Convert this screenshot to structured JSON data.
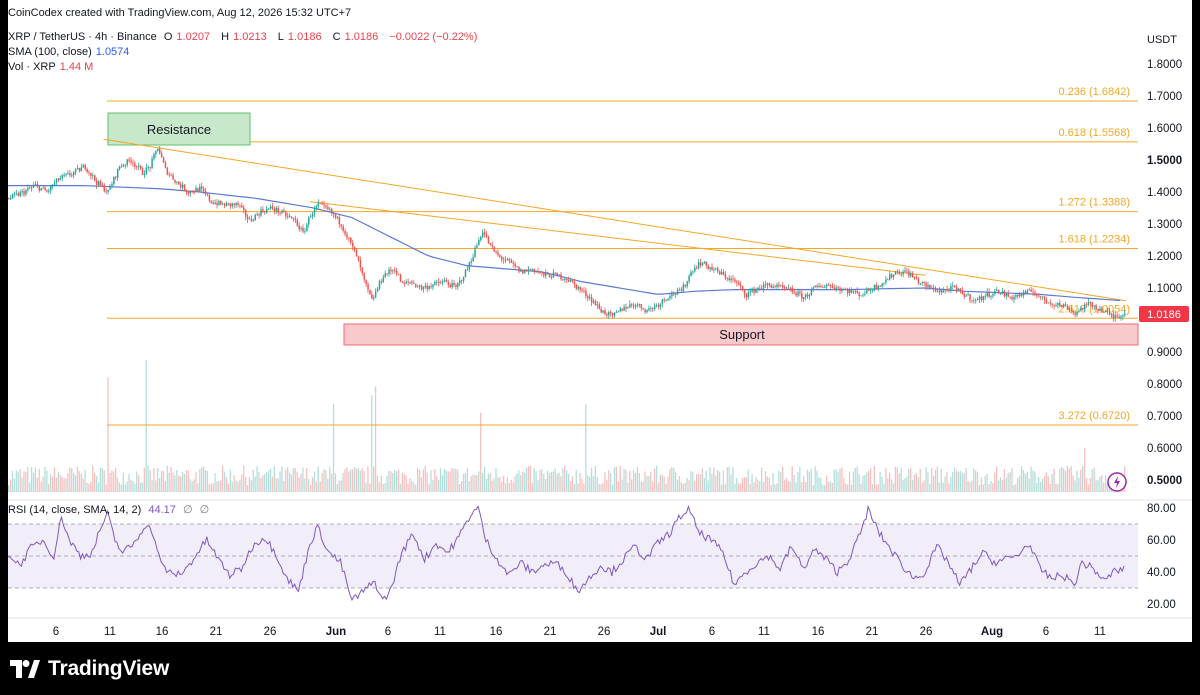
{
  "credit": "CoinCodex created with TradingView.com, Aug 12, 2026 15:32 UTC+7",
  "legend": {
    "symbol": "XRP / TetherUS · 4h · Binance",
    "open_label": "O",
    "open": "1.0207",
    "high_label": "H",
    "high": "1.0213",
    "low_label": "L",
    "low": "1.0186",
    "close_label": "C",
    "close": "1.0186",
    "change": "−0.0022 (−0.22%)",
    "sma_label": "SMA (100, close)",
    "sma_value": "1.0574",
    "vol_label": "Vol · XRP",
    "vol_value": "1.44 M"
  },
  "currency": "USDT",
  "rsi_legend": {
    "label": "RSI (14, close, SMA, 14, 2)",
    "value": "44.17",
    "na1": "∅",
    "na2": "∅"
  },
  "brand": "TradingView",
  "colors": {
    "up": "#26a69a",
    "down": "#ef5350",
    "sma": "#5b7bd5",
    "fib": "#f5a623",
    "rsi": "#7e57c2",
    "support": "#f26b73",
    "resistance": "#5cbf6b"
  },
  "chart_data": {
    "type": "candlestick",
    "x_tick_labels": [
      "6",
      "11",
      "16",
      "21",
      "26",
      "Jun",
      "6",
      "11",
      "16",
      "21",
      "26",
      "Jul",
      "6",
      "11",
      "16",
      "21",
      "26",
      "Aug",
      "6",
      "11"
    ],
    "y_tick_labels": [
      "1.8000",
      "1.7000",
      "1.6000",
      "1.5000",
      "1.4000",
      "1.3000",
      "1.2000",
      "1.1000",
      "0.9000",
      "0.8000",
      "0.7000",
      "0.6000",
      "0.5000"
    ],
    "last_price": "1.0186",
    "fib_levels": [
      {
        "label": "0.236 (1.6842)",
        "value": 1.6842
      },
      {
        "label": "0.618 (1.5568)",
        "value": 1.5568
      },
      {
        "label": "1.272 (1.3388)",
        "value": 1.3388
      },
      {
        "label": "1.618 (1.2234)",
        "value": 1.2234
      },
      {
        "label": "2.618 (1.0054)",
        "value": 1.0054
      },
      {
        "label": "3.272 (0.6720)",
        "value": 0.672
      }
    ],
    "zones": [
      {
        "label": "Resistance",
        "top": 1.6,
        "bottom": 1.555
      },
      {
        "label": "Support",
        "top": 0.999,
        "bottom": 0.98
      }
    ],
    "price_anchors": [
      [
        0,
        1.38
      ],
      [
        8,
        1.4
      ],
      [
        14,
        1.42
      ],
      [
        20,
        1.4
      ],
      [
        26,
        1.44
      ],
      [
        34,
        1.46
      ],
      [
        40,
        1.48
      ],
      [
        46,
        1.43
      ],
      [
        52,
        1.4
      ],
      [
        58,
        1.48
      ],
      [
        64,
        1.5
      ],
      [
        70,
        1.46
      ],
      [
        74,
        1.48
      ],
      [
        78,
        1.54
      ],
      [
        82,
        1.47
      ],
      [
        88,
        1.43
      ],
      [
        94,
        1.4
      ],
      [
        100,
        1.41
      ],
      [
        106,
        1.37
      ],
      [
        112,
        1.36
      ],
      [
        120,
        1.36
      ],
      [
        126,
        1.31
      ],
      [
        132,
        1.34
      ],
      [
        138,
        1.35
      ],
      [
        144,
        1.33
      ],
      [
        150,
        1.31
      ],
      [
        154,
        1.27
      ],
      [
        158,
        1.33
      ],
      [
        162,
        1.36
      ],
      [
        168,
        1.34
      ],
      [
        174,
        1.3
      ],
      [
        178,
        1.25
      ],
      [
        182,
        1.2
      ],
      [
        186,
        1.12
      ],
      [
        190,
        1.06
      ],
      [
        196,
        1.14
      ],
      [
        202,
        1.16
      ],
      [
        206,
        1.11
      ],
      [
        210,
        1.12
      ],
      [
        216,
        1.1
      ],
      [
        222,
        1.11
      ],
      [
        228,
        1.12
      ],
      [
        234,
        1.1
      ],
      [
        240,
        1.16
      ],
      [
        244,
        1.22
      ],
      [
        248,
        1.28
      ],
      [
        252,
        1.23
      ],
      [
        256,
        1.2
      ],
      [
        262,
        1.18
      ],
      [
        268,
        1.15
      ],
      [
        274,
        1.16
      ],
      [
        280,
        1.14
      ],
      [
        286,
        1.14
      ],
      [
        292,
        1.13
      ],
      [
        298,
        1.1
      ],
      [
        304,
        1.07
      ],
      [
        310,
        1.03
      ],
      [
        316,
        1.01
      ],
      [
        322,
        1.04
      ],
      [
        328,
        1.05
      ],
      [
        334,
        1.03
      ],
      [
        340,
        1.05
      ],
      [
        346,
        1.08
      ],
      [
        352,
        1.09
      ],
      [
        358,
        1.16
      ],
      [
        362,
        1.18
      ],
      [
        368,
        1.16
      ],
      [
        374,
        1.14
      ],
      [
        380,
        1.12
      ],
      [
        386,
        1.08
      ],
      [
        392,
        1.1
      ],
      [
        398,
        1.11
      ],
      [
        404,
        1.1
      ],
      [
        410,
        1.09
      ],
      [
        416,
        1.07
      ],
      [
        422,
        1.1
      ],
      [
        428,
        1.11
      ],
      [
        434,
        1.1
      ],
      [
        440,
        1.09
      ],
      [
        446,
        1.08
      ],
      [
        452,
        1.1
      ],
      [
        458,
        1.12
      ],
      [
        464,
        1.15
      ],
      [
        470,
        1.15
      ],
      [
        476,
        1.12
      ],
      [
        482,
        1.1
      ],
      [
        488,
        1.09
      ],
      [
        494,
        1.1
      ],
      [
        500,
        1.08
      ],
      [
        506,
        1.06
      ],
      [
        512,
        1.08
      ],
      [
        518,
        1.09
      ],
      [
        524,
        1.07
      ],
      [
        530,
        1.08
      ],
      [
        536,
        1.09
      ],
      [
        542,
        1.06
      ],
      [
        548,
        1.05
      ],
      [
        554,
        1.04
      ],
      [
        558,
        1.02
      ],
      [
        562,
        1.04
      ],
      [
        566,
        1.05
      ],
      [
        572,
        1.03
      ],
      [
        578,
        1.01
      ],
      [
        584,
        1.02
      ]
    ],
    "sma_anchors": [
      [
        0,
        1.42
      ],
      [
        40,
        1.42
      ],
      [
        80,
        1.41
      ],
      [
        100,
        1.4
      ],
      [
        130,
        1.38
      ],
      [
        160,
        1.35
      ],
      [
        180,
        1.32
      ],
      [
        200,
        1.26
      ],
      [
        220,
        1.2
      ],
      [
        240,
        1.17
      ],
      [
        260,
        1.16
      ],
      [
        280,
        1.15
      ],
      [
        300,
        1.12
      ],
      [
        320,
        1.1
      ],
      [
        340,
        1.08
      ],
      [
        360,
        1.09
      ],
      [
        380,
        1.095
      ],
      [
        400,
        1.095
      ],
      [
        420,
        1.095
      ],
      [
        440,
        1.095
      ],
      [
        460,
        1.098
      ],
      [
        480,
        1.1
      ],
      [
        500,
        1.09
      ],
      [
        520,
        1.085
      ],
      [
        540,
        1.08
      ],
      [
        560,
        1.07
      ],
      [
        584,
        1.06
      ]
    ],
    "trendlines": [
      {
        "from": [
          50,
          1.565
        ],
        "to": [
          585,
          1.06
        ]
      },
      {
        "from": [
          158,
          1.37
        ],
        "to": [
          480,
          1.14
        ]
      }
    ],
    "volume_spikes": [
      [
        52,
        1.3
      ],
      [
        72,
        1.5
      ],
      [
        170,
        1.0
      ],
      [
        190,
        1.1
      ],
      [
        192,
        1.2
      ],
      [
        247,
        0.9
      ],
      [
        302,
        1.0
      ],
      [
        563,
        0.5
      ]
    ],
    "rsi": {
      "levels": [
        70,
        50,
        30
      ],
      "ticks": [
        "80.00",
        "60.00",
        "40.00",
        "20.00"
      ],
      "anchors": [
        [
          0,
          52
        ],
        [
          6,
          44
        ],
        [
          12,
          55
        ],
        [
          18,
          60
        ],
        [
          24,
          50
        ],
        [
          28,
          75
        ],
        [
          32,
          60
        ],
        [
          38,
          50
        ],
        [
          44,
          52
        ],
        [
          48,
          66
        ],
        [
          52,
          76
        ],
        [
          56,
          60
        ],
        [
          60,
          52
        ],
        [
          66,
          58
        ],
        [
          72,
          70
        ],
        [
          76,
          64
        ],
        [
          80,
          45
        ],
        [
          86,
          38
        ],
        [
          92,
          40
        ],
        [
          98,
          50
        ],
        [
          104,
          60
        ],
        [
          110,
          48
        ],
        [
          116,
          38
        ],
        [
          122,
          42
        ],
        [
          128,
          56
        ],
        [
          134,
          62
        ],
        [
          140,
          52
        ],
        [
          146,
          36
        ],
        [
          152,
          28
        ],
        [
          158,
          58
        ],
        [
          162,
          68
        ],
        [
          168,
          52
        ],
        [
          174,
          46
        ],
        [
          180,
          22
        ],
        [
          186,
          28
        ],
        [
          192,
          34
        ],
        [
          196,
          22
        ],
        [
          200,
          28
        ],
        [
          206,
          52
        ],
        [
          212,
          64
        ],
        [
          218,
          48
        ],
        [
          224,
          58
        ],
        [
          230,
          52
        ],
        [
          236,
          62
        ],
        [
          242,
          76
        ],
        [
          246,
          80
        ],
        [
          250,
          60
        ],
        [
          256,
          48
        ],
        [
          262,
          38
        ],
        [
          268,
          46
        ],
        [
          274,
          40
        ],
        [
          280,
          44
        ],
        [
          286,
          46
        ],
        [
          292,
          40
        ],
        [
          298,
          28
        ],
        [
          304,
          36
        ],
        [
          310,
          44
        ],
        [
          316,
          40
        ],
        [
          322,
          48
        ],
        [
          328,
          56
        ],
        [
          334,
          48
        ],
        [
          340,
          58
        ],
        [
          346,
          64
        ],
        [
          352,
          75
        ],
        [
          356,
          79
        ],
        [
          362,
          64
        ],
        [
          368,
          60
        ],
        [
          374,
          52
        ],
        [
          380,
          32
        ],
        [
          386,
          40
        ],
        [
          392,
          46
        ],
        [
          398,
          50
        ],
        [
          404,
          42
        ],
        [
          410,
          56
        ],
        [
          416,
          42
        ],
        [
          422,
          54
        ],
        [
          428,
          48
        ],
        [
          434,
          40
        ],
        [
          440,
          48
        ],
        [
          446,
          64
        ],
        [
          450,
          79
        ],
        [
          456,
          64
        ],
        [
          462,
          54
        ],
        [
          468,
          44
        ],
        [
          474,
          36
        ],
        [
          480,
          40
        ],
        [
          486,
          56
        ],
        [
          492,
          46
        ],
        [
          498,
          32
        ],
        [
          504,
          42
        ],
        [
          510,
          52
        ],
        [
          516,
          46
        ],
        [
          522,
          48
        ],
        [
          528,
          50
        ],
        [
          534,
          58
        ],
        [
          540,
          42
        ],
        [
          546,
          36
        ],
        [
          552,
          38
        ],
        [
          558,
          32
        ],
        [
          562,
          46
        ],
        [
          568,
          42
        ],
        [
          574,
          34
        ],
        [
          578,
          40
        ],
        [
          584,
          42
        ]
      ]
    }
  }
}
